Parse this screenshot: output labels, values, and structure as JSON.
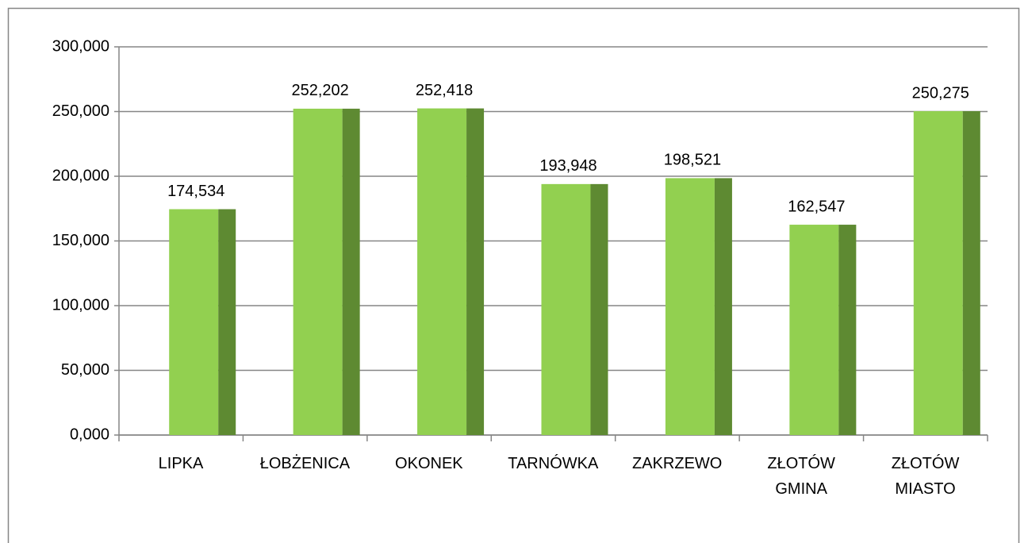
{
  "chart_data": {
    "type": "bar",
    "categories": [
      "LIPKA",
      "ŁOBŻENICA",
      "OKONEK",
      "TARNÓWKA",
      "ZAKRZEWO",
      "ZŁOTÓW\nGMINA",
      "ZŁOTÓW\nMIASTO"
    ],
    "values": [
      174.534,
      252.202,
      252.418,
      193.948,
      198.521,
      162.547,
      250.275
    ],
    "value_labels": [
      "174,534",
      "252,202",
      "252,418",
      "193,948",
      "198,521",
      "162,547",
      "250,275"
    ],
    "color": "#92d050",
    "side_color": "#5e8a32",
    "ylim": [
      0,
      300
    ],
    "yticks": [
      {
        "value": 0,
        "label": "0,000"
      },
      {
        "value": 50,
        "label": "50,000"
      },
      {
        "value": 100,
        "label": "100,000"
      },
      {
        "value": 150,
        "label": "150,000"
      },
      {
        "value": 200,
        "label": "200,000"
      },
      {
        "value": 250,
        "label": "250,000"
      },
      {
        "value": 300,
        "label": "300,000"
      }
    ],
    "grid": true
  }
}
